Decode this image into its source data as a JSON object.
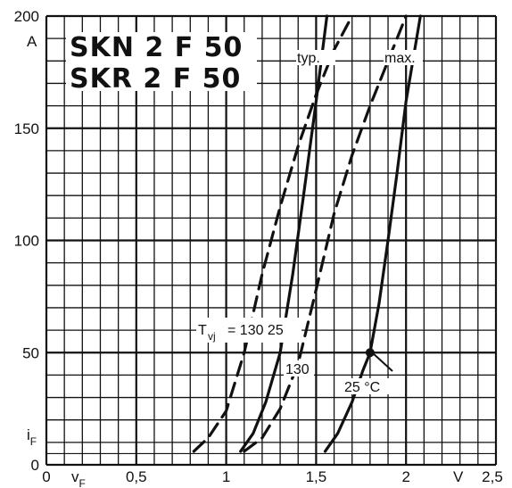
{
  "chart_data": {
    "type": "line",
    "title": [
      "SKN 2 F 50",
      "SKR 2 F 50"
    ],
    "xlabel": "vF",
    "ylabel": "iF",
    "x_unit": "V",
    "y_unit": "A",
    "xlim": [
      0,
      2.5
    ],
    "ylim": [
      0,
      200
    ],
    "x_ticks": [
      {
        "value": 0,
        "label": "0"
      },
      {
        "value": 0.5,
        "label": "0,5"
      },
      {
        "value": 1,
        "label": "1"
      },
      {
        "value": 1.5,
        "label": "1,5"
      },
      {
        "value": 2,
        "label": "2"
      },
      {
        "value": 2.5,
        "label": "2,5"
      }
    ],
    "y_ticks": [
      {
        "value": 0,
        "label": "0"
      },
      {
        "value": 50,
        "label": "50"
      },
      {
        "value": 100,
        "label": "100"
      },
      {
        "value": 150,
        "label": "150"
      },
      {
        "value": 200,
        "label": "200"
      }
    ],
    "grid": true,
    "series": [
      {
        "group": "typ.",
        "temperature": "130",
        "style": "dashed",
        "x": [
          0.82,
          0.9,
          1.0,
          1.1,
          1.2,
          1.3,
          1.4,
          1.5,
          1.6,
          1.7
        ],
        "y": [
          6,
          12,
          24,
          50,
          85,
          115,
          142,
          165,
          185,
          200
        ]
      },
      {
        "group": "typ.",
        "temperature": "25",
        "style": "solid",
        "x": [
          1.08,
          1.15,
          1.22,
          1.3,
          1.37,
          1.43,
          1.5,
          1.56
        ],
        "y": [
          6,
          14,
          28,
          50,
          85,
          120,
          162,
          200
        ]
      },
      {
        "group": "max.",
        "temperature": "130",
        "style": "dashed",
        "x": [
          1.1,
          1.2,
          1.3,
          1.4,
          1.5,
          1.6,
          1.7,
          1.8,
          1.9,
          2.0
        ],
        "y": [
          6,
          12,
          25,
          45,
          78,
          112,
          138,
          160,
          180,
          200
        ]
      },
      {
        "group": "max.",
        "temperature": "25",
        "style": "solid",
        "x": [
          1.55,
          1.62,
          1.7,
          1.76,
          1.8,
          1.85,
          1.9,
          1.95,
          2.0,
          2.08
        ],
        "y": [
          6,
          14,
          28,
          42,
          50,
          72,
          100,
          130,
          162,
          200
        ]
      }
    ],
    "marker": {
      "x": 1.8,
      "y": 50
    },
    "annotations": {
      "typ": "typ.",
      "max": "max.",
      "tvj_label": "T",
      "tvj_sub": "vj",
      "tvj_values": "= 130 25",
      "label_130": "130",
      "label_25c": "25 °C"
    }
  }
}
